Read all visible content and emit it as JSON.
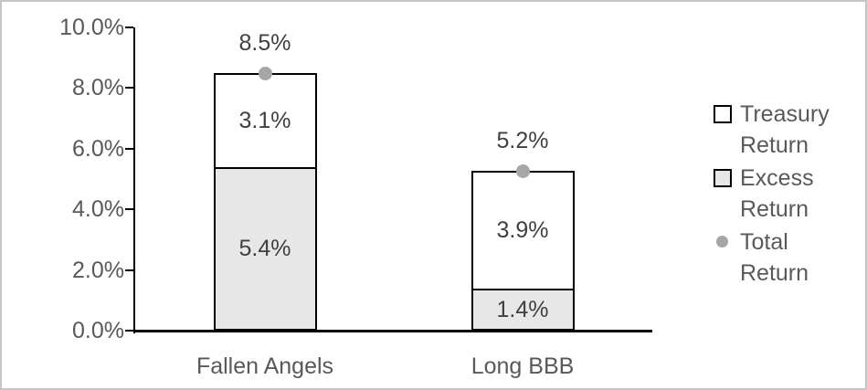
{
  "chart_data": {
    "type": "bar",
    "variant": "stacked-column",
    "title": "",
    "categories": [
      "Fallen Angels",
      "Long BBB"
    ],
    "series": [
      {
        "name": "Excess Return",
        "values": [
          5.4,
          1.4
        ],
        "labels": [
          "5.4%",
          "1.4%"
        ],
        "fill": "#e7e7e7"
      },
      {
        "name": "Treasury Return",
        "values": [
          3.1,
          3.9
        ],
        "labels": [
          "3.1%",
          "3.9%"
        ],
        "fill": "#ffffff"
      }
    ],
    "totals": {
      "name": "Total Return",
      "values": [
        8.5,
        5.2
      ],
      "labels": [
        "8.5%",
        "5.2%"
      ],
      "marker_color": "#a6a6a6"
    },
    "y_axis": {
      "min": 0,
      "max": 10,
      "ticks": [
        {
          "value": 0,
          "label": "0.0%"
        },
        {
          "value": 2,
          "label": "2.0%"
        },
        {
          "value": 4,
          "label": "4.0%"
        },
        {
          "value": 6,
          "label": "6.0%"
        },
        {
          "value": 8,
          "label": "8.0%"
        },
        {
          "value": 10,
          "label": "10.0%"
        }
      ]
    },
    "grid": false,
    "legend_position": "right",
    "legend": [
      {
        "label": "Treasury Return",
        "swatch": "square",
        "fill": "#ffffff"
      },
      {
        "label": "Excess Return",
        "swatch": "square",
        "fill": "#e7e7e7"
      },
      {
        "label": "Total Return",
        "swatch": "dot",
        "fill": "#a6a6a6"
      }
    ]
  },
  "colors": {
    "axis": "#000000",
    "bar_border": "#000000",
    "axis_label_text": "#595959",
    "data_label_text": "#404040",
    "total_marker": "#a6a6a6",
    "excess_fill": "#e7e7e7",
    "treasury_fill": "#ffffff",
    "frame_border": "#c6c6c6"
  }
}
